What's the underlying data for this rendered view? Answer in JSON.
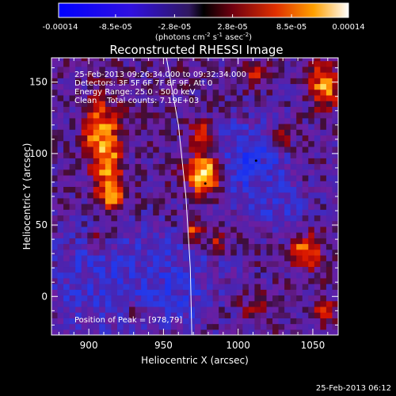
{
  "chart_data": {
    "type": "heatmap",
    "title": "Reconstructed RHESSI Image",
    "xlabel": "Heliocentric X (arcsec)",
    "ylabel": "Heliocentric Y (arcsec)",
    "xlim": [
      875,
      1067
    ],
    "ylim": [
      -27,
      167
    ],
    "x_ticks": [
      900,
      950,
      1000,
      1050
    ],
    "y_ticks": [
      0,
      50,
      100,
      150
    ],
    "colorbar": {
      "min": -0.00014,
      "max": 0.00014,
      "tick_labels": [
        "-0.00014",
        "-8.5e-05",
        "-2.8e-05",
        "2.8e-05",
        "8.5e-05",
        "0.00014"
      ],
      "tick_values": [
        -0.00014,
        -8.5e-05,
        -2.8e-05,
        2.8e-05,
        8.5e-05,
        0.00014
      ],
      "unit_base": "(photons cm",
      "unit_sup1": "-2",
      "unit_mid": " s",
      "unit_sup2": "-1",
      "unit_mid2": " asec",
      "unit_sup3": "-2",
      "unit_end": ")"
    },
    "annotations": [
      "25-Feb-2013 09:26:34.000 to 09:32:34.000",
      "Detectors: 3F 5F 6F 7F 8F 9F, Att 0",
      "Energy Range: 25.0 - 50.0 keV",
      "Clean    Total counts: 7.19E+03"
    ],
    "peak_label": "Position of Peak = [978,79]",
    "peak": [
      978,
      79
    ],
    "limb_curve": [
      [
        952,
        167
      ],
      [
        960,
        120
      ],
      [
        965,
        70
      ],
      [
        968,
        20
      ],
      [
        969,
        -27
      ]
    ],
    "sources": [
      {
        "x": 912,
        "y": 99,
        "sx": 7,
        "sy": 26,
        "amp": 1.0
      },
      {
        "x": 902,
        "y": 118,
        "sx": 5,
        "sy": 10,
        "amp": 0.6
      },
      {
        "x": 917,
        "y": 70,
        "sx": 6,
        "sy": 6,
        "amp": 0.5
      },
      {
        "x": 978,
        "y": 86,
        "sx": 8,
        "sy": 9,
        "amp": 1.5
      },
      {
        "x": 976,
        "y": 112,
        "sx": 5,
        "sy": 8,
        "amp": 0.7
      },
      {
        "x": 970,
        "y": 46,
        "sx": 4,
        "sy": 6,
        "amp": 0.8
      },
      {
        "x": 985,
        "y": 38,
        "sx": 4,
        "sy": 5,
        "amp": 0.6
      },
      {
        "x": 1045,
        "y": 32,
        "sx": 7,
        "sy": 8,
        "amp": 0.9
      },
      {
        "x": 1058,
        "y": 148,
        "sx": 6,
        "sy": 10,
        "amp": 1.0
      },
      {
        "x": 1030,
        "y": 112,
        "sx": 5,
        "sy": 5,
        "amp": 0.5
      },
      {
        "x": 1012,
        "y": 155,
        "sx": 6,
        "sy": 5,
        "amp": 0.6
      },
      {
        "x": 963,
        "y": 158,
        "sx": 4,
        "sy": 5,
        "amp": 0.5
      },
      {
        "x": 1058,
        "y": -10,
        "sx": 5,
        "sy": 6,
        "amp": 0.5
      },
      {
        "x": 1010,
        "y": -8,
        "sx": 5,
        "sy": 6,
        "amp": 0.5
      },
      {
        "x": 930,
        "y": -12,
        "sx": 5,
        "sy": 5,
        "amp": 0.4
      },
      {
        "x": 905,
        "y": 40,
        "sx": 4,
        "sy": 5,
        "amp": 0.3
      },
      {
        "x": 1005,
        "y": 95,
        "sx": 18,
        "sy": 18,
        "amp": -0.55
      },
      {
        "x": 905,
        "y": 10,
        "sx": 25,
        "sy": 30,
        "amp": -0.35
      },
      {
        "x": 960,
        "y": 10,
        "sx": 20,
        "sy": 25,
        "amp": -0.35
      },
      {
        "x": 1030,
        "y": 60,
        "sx": 15,
        "sy": 15,
        "amp": -0.25
      }
    ]
  },
  "footer": {
    "timestamp": "25-Feb-2013 06:12"
  }
}
